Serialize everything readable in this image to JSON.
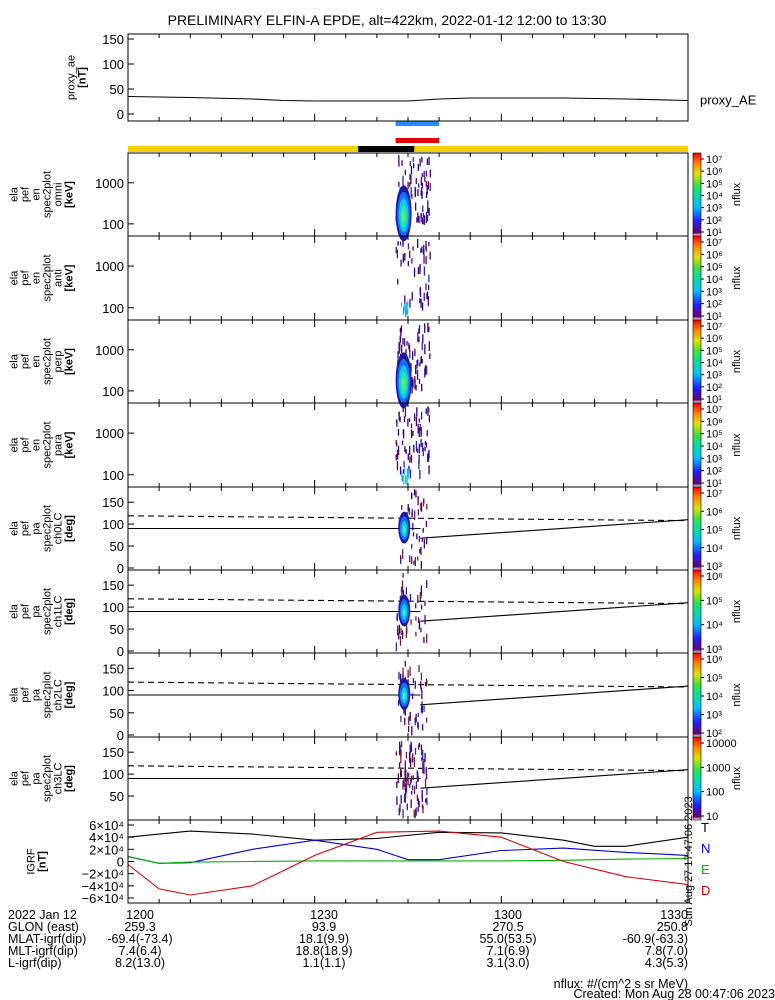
{
  "title": "PRELIMINARY ELFIN-A EPDE, alt=422km, 2022-01-12 12:00 to 13:30",
  "time_range": [
    "12:00",
    "13:30"
  ],
  "colors": {
    "status_yellow": "#f5d000",
    "status_black": "#000000",
    "science_blue": "#1e90ff",
    "science_red": "#e00000",
    "T": "#000000",
    "N": "#0000cc",
    "E": "#00b000",
    "D": "#dd0000"
  },
  "panels": [
    {
      "id": "proxy_ae",
      "ylabel": [
        "proxy_ae",
        "[nT]"
      ],
      "side_label": "proxy_AE",
      "yticks": [
        "150",
        "100",
        "50",
        "0"
      ]
    },
    {
      "id": "omni",
      "ylabel": [
        "ela",
        "pef",
        "en",
        "spec2plot",
        "omni",
        "[keV]"
      ],
      "yticks": [
        "1000",
        "100"
      ],
      "cbar_ticks": [
        "10⁷",
        "10⁶",
        "10⁵",
        "10⁴",
        "10³",
        "10²",
        "10¹"
      ],
      "cbar_label": "nflux"
    },
    {
      "id": "anti",
      "ylabel": [
        "ela",
        "pef",
        "en",
        "spec2plot",
        "anti",
        "[keV]"
      ],
      "yticks": [
        "1000",
        "100"
      ],
      "cbar_ticks": [
        "10⁷",
        "10⁶",
        "10⁵",
        "10⁴",
        "10³",
        "10²",
        "10¹"
      ],
      "cbar_label": "nflux"
    },
    {
      "id": "perp",
      "ylabel": [
        "ela",
        "pef",
        "en",
        "spec2plot",
        "perp",
        "[keV]"
      ],
      "yticks": [
        "1000",
        "100"
      ],
      "cbar_ticks": [
        "10⁷",
        "10⁶",
        "10⁵",
        "10⁴",
        "10³",
        "10²",
        "10¹"
      ],
      "cbar_label": "nflux"
    },
    {
      "id": "para",
      "ylabel": [
        "ela",
        "pef",
        "en",
        "spec2plot",
        "para",
        "[keV]"
      ],
      "yticks": [
        "1000",
        "100"
      ],
      "cbar_ticks": [
        "10⁷",
        "10⁶",
        "10⁵",
        "10⁴",
        "10³",
        "10²",
        "10¹"
      ],
      "cbar_label": "nflux"
    },
    {
      "id": "ch0LC",
      "ylabel": [
        "ela",
        "pef",
        "pa",
        "spec2plot",
        "ch0LC",
        "[deg]"
      ],
      "yticks": [
        "150",
        "100",
        "50",
        "0"
      ],
      "cbar_ticks": [
        "10⁷",
        "10⁶",
        "10⁵",
        "10⁴",
        "10³"
      ],
      "cbar_label": "nflux"
    },
    {
      "id": "ch1LC",
      "ylabel": [
        "ela",
        "pef",
        "pa",
        "spec2plot",
        "ch1LC",
        "[deg]"
      ],
      "yticks": [
        "150",
        "100",
        "50",
        "0"
      ],
      "cbar_ticks": [
        "10⁶",
        "10⁵",
        "10⁴",
        "10³"
      ],
      "cbar_label": "nflux"
    },
    {
      "id": "ch2LC",
      "ylabel": [
        "ela",
        "pef",
        "pa",
        "spec2plot",
        "ch2LC",
        "[deg]"
      ],
      "yticks": [
        "150",
        "100",
        "50",
        "0"
      ],
      "cbar_ticks": [
        "10⁶",
        "10⁵",
        "10⁴",
        "10³",
        "10²"
      ],
      "cbar_label": "nflux"
    },
    {
      "id": "ch3LC",
      "ylabel": [
        "ela",
        "pef",
        "pa",
        "spec2plot",
        "ch3LC",
        "[deg]"
      ],
      "yticks": [
        "150",
        "100",
        "50"
      ],
      "cbar_ticks": [
        "10000",
        "1000",
        "100",
        "10"
      ],
      "cbar_label": "nflux"
    },
    {
      "id": "IGRF",
      "ylabel": [
        "IGRF",
        "[nT]"
      ],
      "yticks": [
        "6×10⁴",
        "4×10⁴",
        "2×10⁴",
        "0",
        "−2×10⁴",
        "−4×10⁴",
        "−6×10⁴"
      ],
      "legend": [
        "T",
        "N",
        "E",
        "D"
      ]
    }
  ],
  "chart_data": {
    "type": "line",
    "title": "PRELIMINARY ELFIN-A EPDE, alt=422km, 2022-01-12 12:00 to 13:30",
    "x_ticks": [
      "1200",
      "1230",
      "1300",
      "1330"
    ],
    "xlim_minutes": [
      0,
      90
    ],
    "proxy_ae": {
      "name": "proxy_AE",
      "ylim": [
        0,
        150
      ],
      "x": [
        0,
        10,
        20,
        25,
        30,
        40,
        45,
        50,
        55,
        60,
        70,
        80,
        90
      ],
      "y": [
        35,
        33,
        30,
        27,
        26,
        26,
        26,
        30,
        32,
        32,
        32,
        30,
        27
      ]
    },
    "pa_lc_dashed": {
      "ylim": [
        0,
        180
      ],
      "x": [
        0,
        90
      ],
      "y": [
        119,
        108
      ]
    },
    "pa_lc_solid_after": {
      "x": [
        47,
        90
      ],
      "y": [
        68,
        110
      ]
    },
    "pa_90_line": 90,
    "igrf": {
      "ylim": [
        -60000,
        60000
      ],
      "series": [
        {
          "name": "T",
          "x": [
            0,
            5,
            10,
            20,
            30,
            40,
            50,
            60,
            70,
            75,
            80,
            90
          ],
          "y": [
            40000,
            45000,
            50000,
            45000,
            35000,
            38000,
            48000,
            47000,
            35000,
            25000,
            25000,
            40000
          ]
        },
        {
          "name": "N",
          "x": [
            0,
            5,
            10,
            20,
            30,
            40,
            45,
            50,
            60,
            70,
            80,
            90
          ],
          "y": [
            8000,
            -3000,
            -2000,
            20000,
            35000,
            20000,
            3000,
            3000,
            18000,
            22000,
            15000,
            10000
          ]
        },
        {
          "name": "E",
          "x": [
            0,
            5,
            10,
            20,
            30,
            40,
            50,
            60,
            70,
            80,
            90
          ],
          "y": [
            8000,
            -3000,
            -1000,
            0,
            1000,
            1000,
            1000,
            1000,
            2000,
            4000,
            5000
          ]
        },
        {
          "name": "D",
          "x": [
            0,
            5,
            10,
            20,
            30,
            40,
            50,
            60,
            70,
            80,
            90
          ],
          "y": [
            -5000,
            -45000,
            -55000,
            -40000,
            10000,
            48000,
            50000,
            40000,
            0,
            -25000,
            -38000
          ]
        }
      ]
    },
    "footer": {
      "rows": [
        {
          "label": "2022 Jan 12",
          "values": [
            "1200",
            "1230",
            "1300",
            "1330"
          ]
        },
        {
          "label": "GLON (east)",
          "values": [
            "259.3",
            "93.9",
            "270.5",
            "250.8"
          ]
        },
        {
          "label": "MLAT-igrf(dip)",
          "values": [
            "-69.4(-73.4)",
            "18.1(9.9)",
            "55.0(53.5)",
            "-60.9(-63.3)"
          ]
        },
        {
          "label": "MLT-igrf(dip)",
          "values": [
            "7.4(6.4)",
            "18.8(18.9)",
            "7.1(6.9)",
            "7.8(7.0)"
          ]
        },
        {
          "label": "L-igrf(dip)",
          "values": [
            "8.2(13.0)",
            "1.1(1.1)",
            "3.1(3.0)",
            "4.3(5.3)"
          ]
        }
      ],
      "units_note": "nflux: #/(cm^2 s sr MeV)",
      "created": "Created: Mon Aug 28 00:47:06 2023",
      "side_stamp": "Sun Aug 27 17:47:06 2023"
    }
  }
}
